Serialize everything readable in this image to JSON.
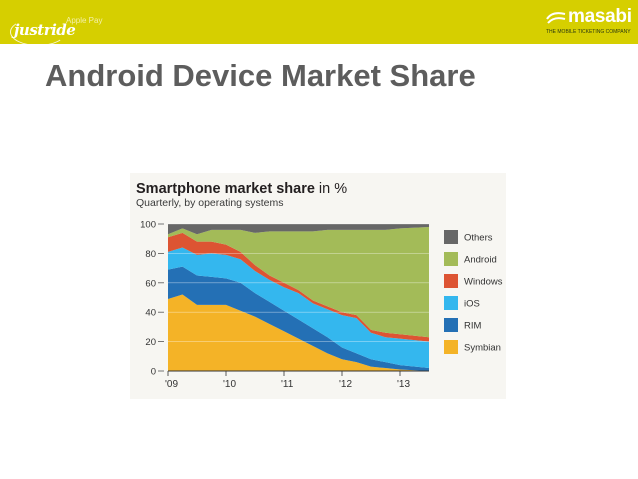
{
  "header": {
    "left_logo": "justride",
    "tag": "Apple Pay",
    "right_logo": "masabi",
    "right_tagline": "THE MOBILE TICKETING COMPANY"
  },
  "slide": {
    "title": "Android Device Market Share"
  },
  "colors": {
    "banner": "#d6cf00",
    "Others": "#676767",
    "Android": "#a3bb58",
    "Windows": "#dd5433",
    "iOS": "#34b7ee",
    "RIM": "#2470b5",
    "Symbian": "#f4b327"
  },
  "chart_data": {
    "type": "area",
    "stacked": true,
    "title": "Smartphone market share",
    "title_suffix": "in %",
    "subtitle": "Quarterly, by operating systems",
    "xlabel": "",
    "ylabel": "",
    "ylim": [
      0,
      100
    ],
    "y_ticks": [
      0,
      20,
      40,
      60,
      80,
      100
    ],
    "x_ticks": [
      {
        "label": "'09",
        "x": 2009
      },
      {
        "label": "'10",
        "x": 2010
      },
      {
        "label": "'11",
        "x": 2011
      },
      {
        "label": "'12",
        "x": 2012
      },
      {
        "label": "'13",
        "x": 2013
      }
    ],
    "x": [
      2009.0,
      2009.25,
      2009.5,
      2009.75,
      2010.0,
      2010.25,
      2010.5,
      2010.75,
      2011.0,
      2011.25,
      2011.5,
      2011.75,
      2012.0,
      2012.25,
      2012.5,
      2012.75,
      2013.0,
      2013.25
    ],
    "series": [
      {
        "name": "Symbian",
        "values": [
          49,
          52,
          45,
          45,
          45,
          41,
          37,
          32,
          27,
          22,
          17,
          12,
          8,
          6,
          3,
          2,
          1,
          0
        ]
      },
      {
        "name": "RIM",
        "values": [
          20,
          19,
          20,
          19,
          18,
          19,
          16,
          15,
          14,
          13,
          12,
          11,
          8,
          6,
          5,
          4,
          3,
          2
        ]
      },
      {
        "name": "iOS",
        "values": [
          12,
          13,
          14,
          16,
          16,
          16,
          15,
          15,
          16,
          18,
          17,
          19,
          22,
          24,
          18,
          17,
          18,
          18
        ]
      },
      {
        "name": "Windows",
        "values": [
          10,
          10,
          9,
          8,
          7,
          5,
          4,
          3,
          3,
          2,
          2,
          2,
          2,
          2,
          2,
          3,
          3,
          3
        ]
      },
      {
        "name": "Android",
        "values": [
          2,
          3,
          5,
          8,
          10,
          15,
          22,
          30,
          35,
          40,
          47,
          52,
          56,
          58,
          68,
          70,
          72,
          75
        ]
      },
      {
        "name": "Others",
        "values": [
          7,
          3,
          7,
          4,
          4,
          4,
          6,
          5,
          5,
          5,
          5,
          4,
          4,
          4,
          4,
          4,
          3,
          2
        ]
      }
    ],
    "legend_order": [
      "Others",
      "Android",
      "Windows",
      "iOS",
      "RIM",
      "Symbian"
    ],
    "legend_position": "right",
    "grid": true
  }
}
